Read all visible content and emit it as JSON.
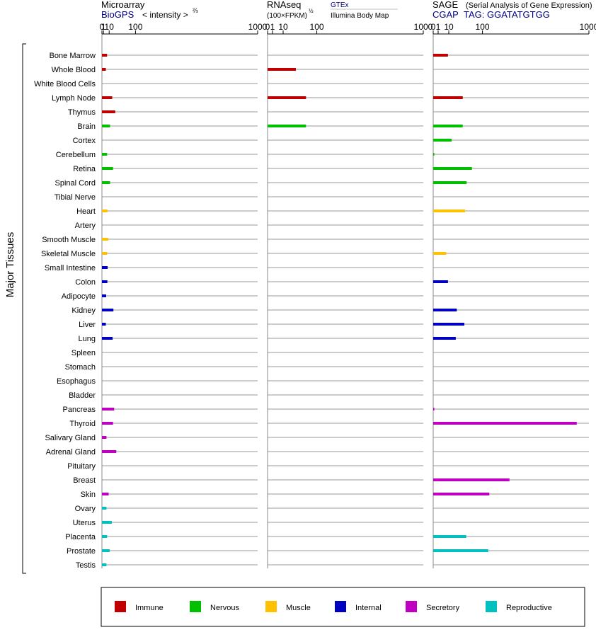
{
  "chart_data": {
    "type": "bar",
    "y_axis_label": "Major Tissues",
    "tissues": [
      "Bone Marrow",
      "Whole Blood",
      "White Blood Cells",
      "Lymph Node",
      "Thymus",
      "Brain",
      "Cortex",
      "Cerebellum",
      "Retina",
      "Spinal Cord",
      "Tibial Nerve",
      "Heart",
      "Artery",
      "Smooth Muscle",
      "Skeletal Muscle",
      "Small Intestine",
      "Colon",
      "Adipocyte",
      "Kidney",
      "Liver",
      "Lung",
      "Spleen",
      "Stomach",
      "Esophagus",
      "Bladder",
      "Pancreas",
      "Thyroid",
      "Salivary Gland",
      "Adrenal Gland",
      "Pituitary",
      "Breast",
      "Skin",
      "Ovary",
      "Uterus",
      "Placenta",
      "Prostate",
      "Testis"
    ],
    "tissue_groups": [
      "Immune",
      "Immune",
      "Immune",
      "Immune",
      "Immune",
      "Nervous",
      "Nervous",
      "Nervous",
      "Nervous",
      "Nervous",
      "Nervous",
      "Muscle",
      "Muscle",
      "Muscle",
      "Muscle",
      "Internal",
      "Internal",
      "Internal",
      "Internal",
      "Internal",
      "Internal",
      "Internal",
      "Internal",
      "Internal",
      "Internal",
      "Secretory",
      "Secretory",
      "Secretory",
      "Secretory",
      "Secretory",
      "Secretory",
      "Secretory",
      "Reproductive",
      "Reproductive",
      "Reproductive",
      "Reproductive",
      "Reproductive"
    ],
    "legend": [
      {
        "name": "Immune",
        "color": "#c00000"
      },
      {
        "name": "Nervous",
        "color": "#00c000"
      },
      {
        "name": "Muscle",
        "color": "#ffc000"
      },
      {
        "name": "Internal",
        "color": "#0000c0"
      },
      {
        "name": "Secretory",
        "color": "#c000c0"
      },
      {
        "name": "Reproductive",
        "color": "#00c0c0"
      }
    ],
    "panels": [
      {
        "title": "Microarray",
        "subtitle_left": "BioGPS",
        "subtitle_right": "< intensity >",
        "subtitle_exp": "⅔",
        "ticks": [
          "0",
          "1",
          "10",
          "100",
          "1000"
        ],
        "xlim": [
          0,
          1000
        ],
        "scale": "power-2/3",
        "values": [
          6,
          4,
          null,
          17,
          25,
          12,
          null,
          6,
          19,
          12,
          null,
          6.5,
          null,
          8,
          6,
          7,
          6.5,
          4.5,
          20,
          4,
          18,
          null,
          null,
          null,
          null,
          22,
          19,
          5,
          28,
          null,
          null,
          9,
          5,
          16,
          6,
          11,
          5
        ],
        "values2": [
          null,
          null,
          null,
          null,
          null,
          null,
          null,
          null,
          null,
          null,
          null,
          null,
          null,
          null,
          null,
          null,
          null,
          null,
          null,
          null,
          null,
          null,
          null,
          null,
          null,
          null,
          null,
          null,
          null,
          null,
          null,
          null,
          null,
          null,
          null,
          null,
          null
        ]
      },
      {
        "title": "RNAseq",
        "subtitle_left": "(100×FPKM)",
        "subtitle_exp": "½",
        "subtitle_right_top": "GTEx",
        "subtitle_right_bottom": "Illumina Body Map",
        "ticks": [
          "0",
          "1",
          "10",
          "100",
          "1000"
        ],
        "xlim": [
          0,
          1000
        ],
        "scale": "power-1/2",
        "values": [
          null,
          33,
          null,
          61,
          null,
          61,
          null,
          null,
          null,
          null,
          null,
          null,
          null,
          null,
          null,
          null,
          null,
          null,
          null,
          null,
          null,
          null,
          null,
          null,
          null,
          null,
          null,
          null,
          null,
          null,
          null,
          null,
          null,
          null,
          null,
          null,
          null
        ],
        "values2": [
          null,
          null,
          null,
          null,
          null,
          null,
          null,
          null,
          null,
          null,
          null,
          null,
          null,
          null,
          null,
          null,
          null,
          null,
          null,
          null,
          null,
          null,
          null,
          null,
          null,
          null,
          null,
          null,
          null,
          null,
          null,
          null,
          null,
          null,
          null,
          null,
          null
        ]
      },
      {
        "title": "SAGE",
        "subtitle_note": "(Serial Analysis of Gene Expression)",
        "subtitle_left": "CGAP",
        "subtitle_right": "TAG: GGATATGTGG",
        "ticks": [
          "0",
          "1",
          "10",
          "100",
          "1000"
        ],
        "xlim": [
          0,
          1000
        ],
        "scale": "power-1/2",
        "values": [
          9,
          null,
          null,
          36,
          null,
          36,
          14,
          0.05,
          62,
          46,
          null,
          42,
          null,
          null,
          7,
          null,
          9,
          null,
          23,
          40,
          21,
          null,
          null,
          null,
          null,
          0.05,
          850,
          null,
          null,
          null,
          240,
          130,
          null,
          null,
          45,
          125,
          null
        ]
      }
    ]
  }
}
